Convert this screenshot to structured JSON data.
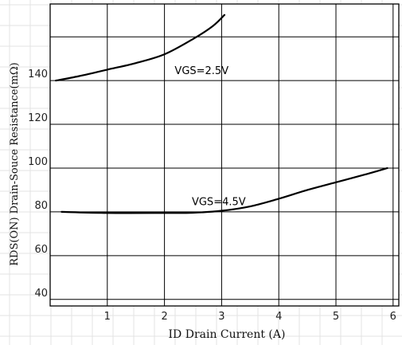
{
  "chart_data": {
    "type": "line",
    "xlabel": "ID Drain Current (A)",
    "ylabel": "RDS(ON) Drain-Souce Resistance(mΩ)",
    "xlim": [
      0,
      6.1
    ],
    "ylim": [
      37,
      175
    ],
    "x_ticks": [
      1,
      2,
      3,
      4,
      5,
      6
    ],
    "y_ticks": [
      40,
      60,
      80,
      100,
      120,
      140
    ],
    "grid": true,
    "series": [
      {
        "name": "VGS=2.5V",
        "x": [
          0.1,
          0.5,
          1.0,
          1.5,
          2.0,
          2.5,
          2.85,
          3.05
        ],
        "values": [
          140,
          142,
          145,
          148,
          152,
          159,
          165,
          170
        ]
      },
      {
        "name": "VGS=4.5V",
        "x": [
          0.2,
          1.0,
          2.0,
          2.5,
          3.0,
          3.5,
          4.0,
          4.5,
          5.0,
          5.5,
          5.9
        ],
        "values": [
          80,
          79.5,
          79.5,
          79.6,
          80.5,
          82.5,
          86,
          90,
          93.5,
          97,
          100
        ]
      }
    ],
    "annotations": [
      {
        "text": "VGS=2.5V",
        "x": 2.65,
        "y": 143
      },
      {
        "text": "VGS=4.5V",
        "x": 2.95,
        "y": 83
      }
    ]
  }
}
